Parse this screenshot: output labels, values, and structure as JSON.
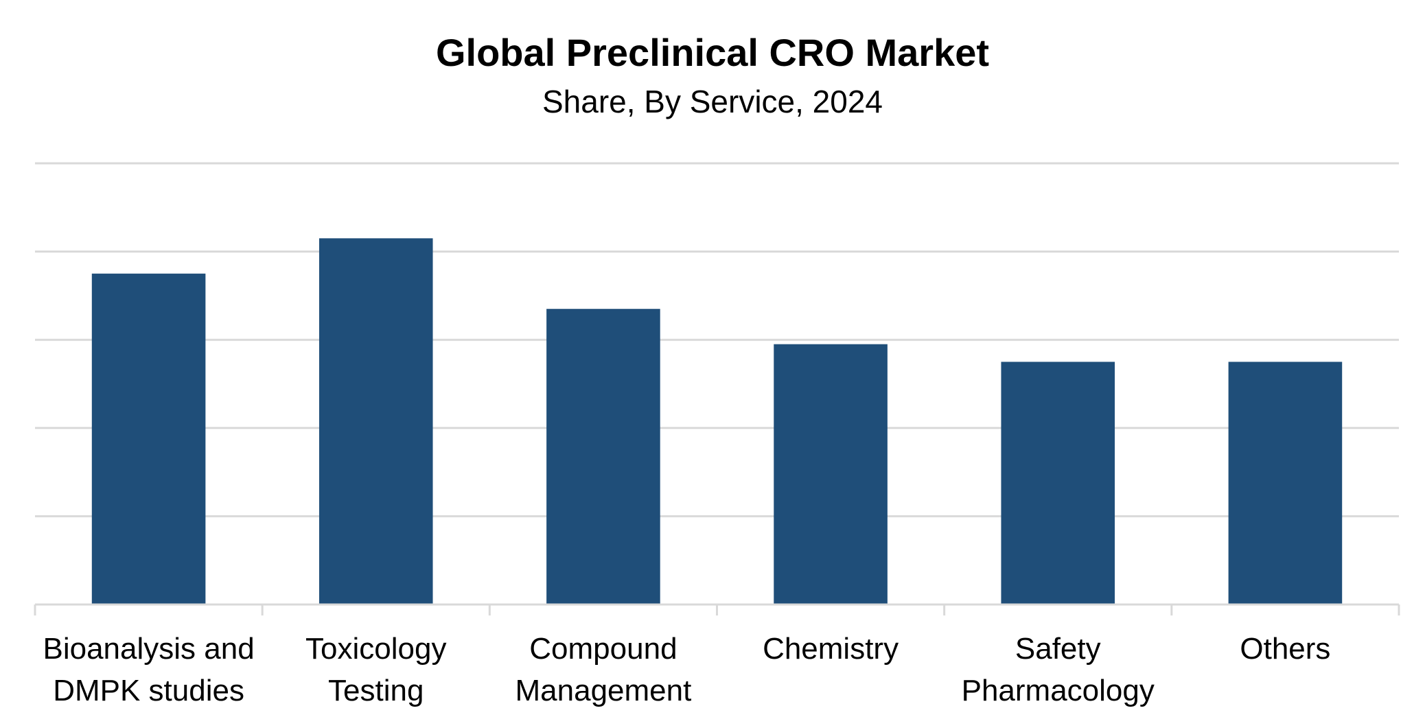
{
  "chart_data": {
    "type": "bar",
    "title": "Global Preclinical CRO Market",
    "subtitle": "Share, By Service, 2024",
    "categories": [
      [
        "Bioanalysis and",
        "DMPK studies"
      ],
      [
        "Toxicology",
        "Testing"
      ],
      [
        "Compound",
        "Management"
      ],
      [
        "Chemistry"
      ],
      [
        "Safety",
        "Pharmacology"
      ],
      [
        "Others"
      ]
    ],
    "values": [
      3.75,
      4.15,
      3.35,
      2.95,
      2.75,
      2.75
    ],
    "ylim": [
      0,
      5
    ],
    "grid": true,
    "xlabel": "",
    "ylabel": "",
    "bar_color": "#1f4e79"
  }
}
